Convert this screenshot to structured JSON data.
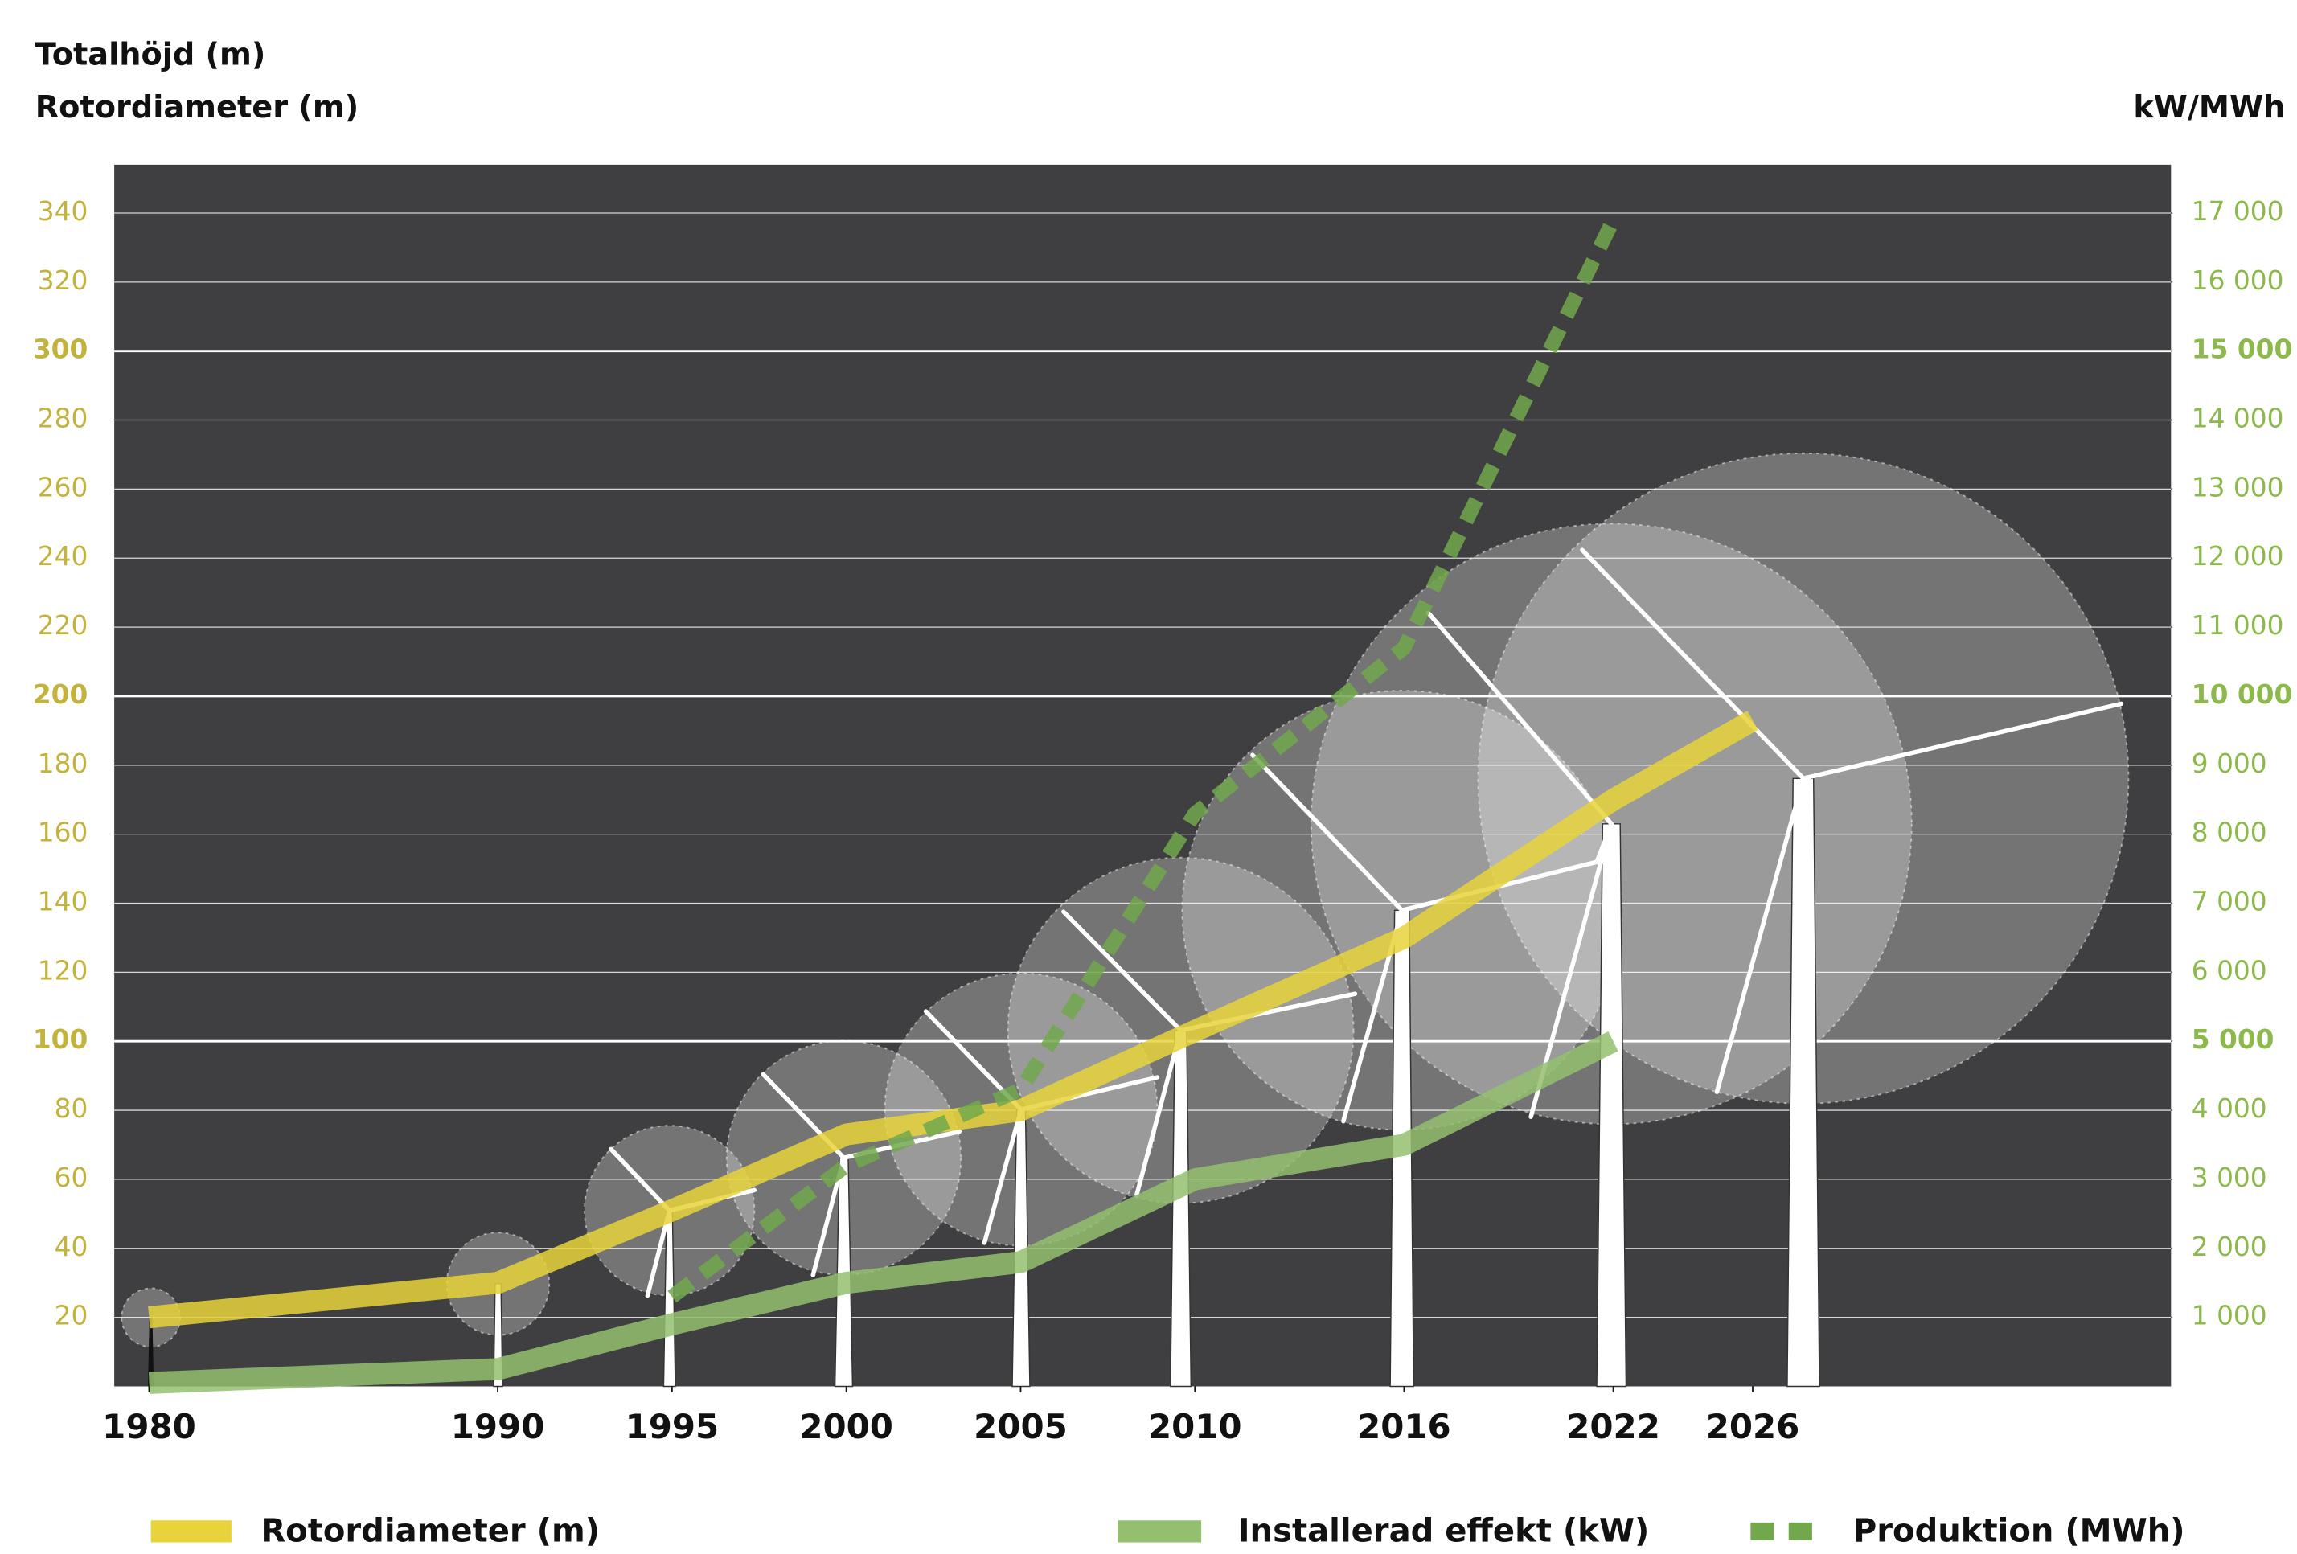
{
  "chart_data": {
    "type": "line",
    "y_title": "Totalhöjd (m)",
    "y_subtitle": "Rotordiameter (m)",
    "y2_title": "kW/MWh",
    "x": [
      1980,
      1990,
      1995,
      2000,
      2005,
      2010,
      2016,
      2022,
      2026
    ],
    "xlim": [
      1979,
      2038
    ],
    "xticks": [
      1980,
      1990,
      1995,
      2000,
      2005,
      2010,
      2016,
      2022,
      2026
    ],
    "ylim": [
      0,
      354
    ],
    "yticks": [
      20,
      40,
      60,
      80,
      100,
      120,
      140,
      160,
      180,
      200,
      220,
      240,
      260,
      280,
      300,
      320,
      340
    ],
    "y2lim": [
      0,
      17700
    ],
    "y2ticks": [
      {
        "value": 1000,
        "label": "1 000"
      },
      {
        "value": 2000,
        "label": "2 000"
      },
      {
        "value": 3000,
        "label": "3 000"
      },
      {
        "value": 4000,
        "label": "4 000"
      },
      {
        "value": 5000,
        "label": "5 000"
      },
      {
        "value": 6000,
        "label": "6 000"
      },
      {
        "value": 7000,
        "label": "7 000"
      },
      {
        "value": 8000,
        "label": "8 000"
      },
      {
        "value": 9000,
        "label": "9 000"
      },
      {
        "value": 10000,
        "label": "10 000"
      },
      {
        "value": 11000,
        "label": "11 000"
      },
      {
        "value": 12000,
        "label": "12 000"
      },
      {
        "value": 13000,
        "label": "13 000"
      },
      {
        "value": 14000,
        "label": "14 000"
      },
      {
        "value": 15000,
        "label": "15 000"
      },
      {
        "value": 16000,
        "label": "16 000"
      },
      {
        "value": 17000,
        "label": "17 000"
      }
    ],
    "grid": true,
    "series": [
      {
        "name": "Rotordiameter (m)",
        "color": "#e8d43a",
        "axis": "y",
        "dashed": false,
        "values": [
          20,
          30,
          51,
          73,
          80,
          103,
          130,
          170,
          193
        ]
      },
      {
        "name": "Installerad effekt (kW)",
        "color": "#93bf6e",
        "axis": "y2",
        "dashed": false,
        "values": [
          50,
          250,
          900,
          1500,
          1800,
          3000,
          3500,
          5000,
          null
        ]
      },
      {
        "name": "Produktion (MWh)",
        "color": "#72a84c",
        "axis": "y2",
        "dashed": true,
        "values": [
          null,
          null,
          1300,
          3200,
          4300,
          8300,
          10700,
          16900,
          null
        ]
      }
    ]
  }
}
